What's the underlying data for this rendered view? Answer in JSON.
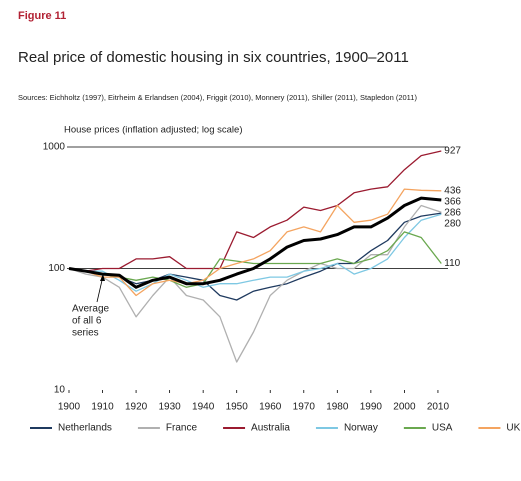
{
  "chart_data": {
    "type": "line",
    "figure_label": "Figure 11",
    "title": "Real price of domestic housing in six countries, 1900–2011",
    "sources": "Sources: Eichholtz (1997), Eitrheim & Erlandsen (2004), Friggit (2010), Monnery (2011), Shiller (2011), Stapledon (2011)",
    "y_label": "House prices (inflation adjusted; log scale)",
    "annotation": [
      "Average",
      "of all 6",
      "series"
    ],
    "log_scale": true,
    "grid": true,
    "legend": "bottom",
    "xlim": [
      1900,
      2013
    ],
    "xticks": [
      1900,
      1910,
      1920,
      1930,
      1940,
      1950,
      1960,
      1970,
      1980,
      1990,
      2000,
      2010
    ],
    "ylim": [
      10,
      1000
    ],
    "yticks": [
      10,
      100,
      1000
    ],
    "x": [
      1900,
      1905,
      1910,
      1915,
      1920,
      1925,
      1930,
      1935,
      1940,
      1945,
      1950,
      1955,
      1960,
      1965,
      1970,
      1975,
      1980,
      1985,
      1990,
      1995,
      2000,
      2005,
      2011
    ],
    "series": [
      {
        "name": "Netherlands",
        "color": "#1f3a5f",
        "width": 1.3,
        "show_end_label": true,
        "values": [
          100,
          95,
          90,
          85,
          75,
          80,
          90,
          85,
          80,
          60,
          55,
          65,
          70,
          75,
          85,
          95,
          110,
          110,
          140,
          170,
          240,
          270,
          286
        ]
      },
      {
        "name": "France",
        "color": "#b0b0b0",
        "width": 1.3,
        "show_end_label": false,
        "values": [
          100,
          90,
          85,
          70,
          40,
          60,
          85,
          60,
          55,
          40,
          17,
          30,
          60,
          80,
          95,
          110,
          100,
          100,
          130,
          130,
          220,
          330,
          290
        ]
      },
      {
        "name": "Australia",
        "color": "#9b1b30",
        "width": 1.3,
        "show_end_label": true,
        "values": [
          100,
          95,
          100,
          100,
          120,
          120,
          125,
          100,
          100,
          100,
          200,
          180,
          220,
          250,
          320,
          300,
          330,
          420,
          450,
          470,
          650,
          850,
          927
        ]
      },
      {
        "name": "Norway",
        "color": "#7ec8e3",
        "width": 1.3,
        "show_end_label": true,
        "values": [
          100,
          95,
          95,
          80,
          65,
          75,
          90,
          80,
          70,
          75,
          75,
          80,
          85,
          85,
          95,
          100,
          110,
          90,
          100,
          120,
          180,
          250,
          280
        ]
      },
      {
        "name": "USA",
        "color": "#6aa84f",
        "width": 1.3,
        "show_end_label": true,
        "values": [
          100,
          95,
          90,
          85,
          80,
          85,
          80,
          70,
          75,
          120,
          115,
          110,
          110,
          110,
          110,
          110,
          120,
          110,
          120,
          140,
          200,
          180,
          110
        ]
      },
      {
        "name": "UK",
        "color": "#f4a460",
        "width": 1.3,
        "show_end_label": true,
        "values": [
          100,
          95,
          85,
          85,
          60,
          75,
          80,
          75,
          80,
          100,
          110,
          120,
          140,
          200,
          220,
          200,
          330,
          240,
          250,
          280,
          450,
          440,
          436
        ]
      },
      {
        "name": "Average of all 6 series",
        "color": "#000000",
        "width": 3,
        "show_end_label": true,
        "in_legend": false,
        "values": [
          100,
          95,
          90,
          88,
          70,
          80,
          85,
          75,
          75,
          80,
          90,
          100,
          120,
          150,
          170,
          175,
          190,
          220,
          220,
          260,
          330,
          380,
          366
        ]
      }
    ]
  }
}
